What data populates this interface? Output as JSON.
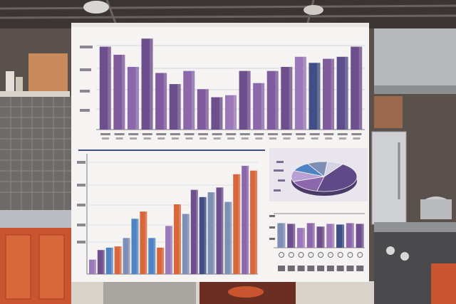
{
  "scene": {
    "description_colors": {
      "wall": "#5a4f4a",
      "steel": "#b9bcc0",
      "orange_cabinet": "#c8552f",
      "poster": "#f5f4f2",
      "purple": "#6e4f8d",
      "lavender": "#9b78b8",
      "navy": "#3f4f86",
      "blue": "#4f83c4",
      "orange": "#d9673c",
      "slate": "#7f8fb4"
    }
  },
  "chart_data": [
    {
      "type": "bar",
      "title": "",
      "xlabel": "",
      "ylabel": "",
      "ylim": [
        0,
        100
      ],
      "values": [
        82,
        74,
        62,
        90,
        56,
        45,
        58,
        40,
        32,
        34,
        58,
        46,
        58,
        62,
        72,
        66,
        70,
        72,
        82
      ],
      "colors": [
        "#6e4f8d",
        "#7f5a9c",
        "#8d67ab",
        "#6e4f8d",
        "#7f5a9c",
        "#6e4f8d",
        "#8d67ab",
        "#7f5a9c",
        "#6e4f8d",
        "#9b78b8",
        "#6e4f8d",
        "#8d67ab",
        "#7f5a9c",
        "#6e4f8d",
        "#9b78b8",
        "#3f4f86",
        "#7f5a9c",
        "#5a4f8a",
        "#6e4f8d"
      ]
    },
    {
      "type": "bar",
      "title": "",
      "xlabel": "",
      "ylabel": "",
      "ylim": [
        0,
        100
      ],
      "values": [
        12,
        20,
        22,
        23,
        30,
        46,
        52,
        30,
        22,
        40,
        58,
        50,
        70,
        64,
        68,
        72,
        60,
        83,
        90,
        86
      ],
      "colors": [
        "#9b78b8",
        "#6e4f8d",
        "#4f83c4",
        "#d9673c",
        "#7f8fb4",
        "#4f83c4",
        "#d9673c",
        "#4f83c4",
        "#d9673c",
        "#9b78b8",
        "#d9673c",
        "#7f8fb4",
        "#6e4f8d",
        "#3f4f86",
        "#7f8fb4",
        "#6e4f8d",
        "#7f8fb4",
        "#d9673c",
        "#8d67ab",
        "#d9673c"
      ]
    },
    {
      "type": "pie",
      "title": "",
      "values": [
        44,
        16,
        12,
        10,
        10,
        8
      ],
      "colors": [
        "#5f4a87",
        "#8d67ab",
        "#b9a0d4",
        "#4f83c4",
        "#7f8fb4",
        "#d7d3e6"
      ]
    },
    {
      "type": "bar",
      "title": "",
      "xlabel": "",
      "ylabel": "",
      "ylim": [
        0,
        100
      ],
      "values": [
        72,
        70,
        58,
        72,
        62,
        70,
        68,
        72,
        70
      ],
      "colors": [
        "#7f8fb4",
        "#6e4f8d",
        "#9b78b8",
        "#8d67ab",
        "#6e4f8d",
        "#9b78b8",
        "#3f4f86",
        "#8d67ab",
        "#6e4f8d"
      ]
    }
  ]
}
